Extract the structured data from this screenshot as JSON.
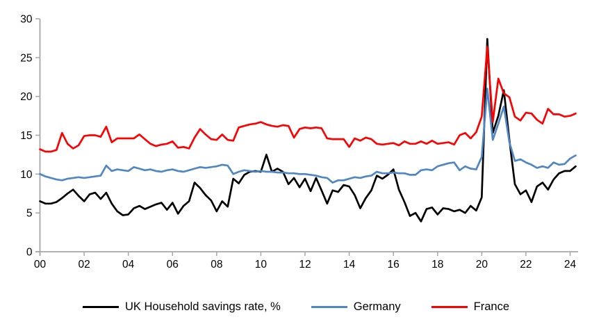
{
  "chart_data": {
    "type": "line",
    "title": "",
    "xlabel": "",
    "ylabel": "",
    "frequency": "quarterly",
    "x_start_year": 2000,
    "x_step_years": 0.25,
    "grid": false,
    "legend_position": "bottom",
    "axis_color": "#A6A6A6",
    "x_axis": {
      "tick_years": [
        0,
        2,
        4,
        6,
        8,
        10,
        12,
        14,
        16,
        18,
        20,
        22,
        24
      ],
      "tick_labels": [
        "00",
        "02",
        "04",
        "06",
        "08",
        "10",
        "12",
        "14",
        "16",
        "18",
        "20",
        "22",
        "24"
      ]
    },
    "y_axis": {
      "min": 0,
      "max": 30,
      "tick_values": [
        0,
        5,
        10,
        15,
        20,
        25,
        30
      ],
      "tick_labels": [
        "0",
        "5",
        "10",
        "15",
        "20",
        "25",
        "30"
      ]
    },
    "series": [
      {
        "name": "UK Household savings rate, %",
        "color": "#000000",
        "values": [
          6.5,
          6.2,
          6.2,
          6.4,
          6.9,
          7.5,
          8.0,
          7.2,
          6.5,
          7.4,
          7.6,
          6.8,
          7.6,
          6.2,
          5.2,
          4.7,
          4.8,
          5.6,
          5.9,
          5.5,
          5.8,
          6.1,
          6.3,
          5.4,
          6.3,
          4.9,
          5.9,
          6.5,
          8.9,
          8.2,
          7.3,
          6.6,
          5.2,
          6.5,
          5.8,
          9.4,
          8.8,
          9.9,
          10.3,
          10.4,
          10.3,
          12.5,
          10.3,
          10.7,
          10.3,
          8.7,
          9.5,
          8.3,
          9.4,
          7.8,
          9.5,
          7.9,
          6.2,
          7.9,
          7.7,
          8.6,
          8.4,
          7.3,
          5.6,
          6.9,
          7.9,
          9.8,
          9.4,
          9.9,
          10.6,
          8.0,
          6.4,
          4.6,
          5.0,
          3.9,
          5.5,
          5.7,
          4.8,
          5.6,
          5.5,
          5.2,
          5.4,
          5.0,
          5.9,
          5.3,
          7.0,
          27.4,
          15.3,
          17.5,
          20.8,
          14.4,
          8.7,
          7.4,
          7.9,
          6.4,
          8.4,
          8.9,
          8.0,
          9.3,
          10.1,
          10.4,
          10.4,
          11.0
        ]
      },
      {
        "name": "Germany",
        "color": "#4F86C6",
        "values": [
          10.0,
          9.7,
          9.5,
          9.3,
          9.2,
          9.4,
          9.5,
          9.6,
          9.5,
          9.6,
          9.7,
          9.8,
          11.1,
          10.4,
          10.6,
          10.5,
          10.4,
          10.9,
          10.7,
          10.5,
          10.6,
          10.4,
          10.3,
          10.5,
          10.6,
          10.4,
          10.3,
          10.5,
          10.7,
          10.9,
          10.8,
          10.9,
          11.0,
          11.2,
          11.1,
          10.0,
          10.3,
          10.5,
          10.4,
          10.3,
          10.4,
          10.3,
          10.3,
          10.2,
          10.2,
          10.1,
          10.1,
          10.0,
          10.0,
          9.9,
          9.8,
          9.6,
          9.5,
          8.9,
          9.2,
          9.2,
          9.4,
          9.6,
          9.5,
          9.7,
          9.8,
          10.3,
          10.1,
          10.1,
          10.2,
          10.1,
          10.1,
          9.9,
          9.9,
          10.5,
          10.6,
          10.5,
          11.0,
          11.2,
          11.4,
          11.5,
          10.5,
          11.0,
          10.7,
          10.6,
          12.2,
          21.0,
          14.4,
          16.5,
          18.7,
          14.1,
          11.7,
          11.9,
          11.5,
          11.2,
          10.8,
          11.0,
          10.8,
          11.5,
          11.2,
          11.3,
          12.0,
          12.4
        ]
      },
      {
        "name": "France",
        "color": "#FF0000",
        "values": [
          13.2,
          12.9,
          12.9,
          13.1,
          15.3,
          13.9,
          13.3,
          13.7,
          14.9,
          15.0,
          15.0,
          14.8,
          16.1,
          14.1,
          14.6,
          14.6,
          14.6,
          14.6,
          15.1,
          14.5,
          13.9,
          13.6,
          13.8,
          13.9,
          14.2,
          13.4,
          13.5,
          13.3,
          14.7,
          15.8,
          15.1,
          14.5,
          14.4,
          15.1,
          14.4,
          14.3,
          16.0,
          16.2,
          16.4,
          16.5,
          16.7,
          16.4,
          16.2,
          16.1,
          16.3,
          16.2,
          14.7,
          15.8,
          16.0,
          15.9,
          16.0,
          15.9,
          14.6,
          14.5,
          14.5,
          14.5,
          13.5,
          14.6,
          14.3,
          14.7,
          14.5,
          13.9,
          13.8,
          13.9,
          14.0,
          13.7,
          14.2,
          13.9,
          13.9,
          14.2,
          13.9,
          14.3,
          13.9,
          14.0,
          14.1,
          13.8,
          15.0,
          15.3,
          14.6,
          15.4,
          17.4,
          26.4,
          16.7,
          22.3,
          20.4,
          19.9,
          17.4,
          16.9,
          17.9,
          17.8,
          17.0,
          16.5,
          18.4,
          17.7,
          17.7,
          17.4,
          17.5,
          17.8
        ]
      }
    ]
  },
  "legend": {
    "items": [
      {
        "label": "UK Household savings rate, %",
        "color": "#000000"
      },
      {
        "label": "Germany",
        "color": "#4F86C6"
      },
      {
        "label": "France",
        "color": "#FF0000"
      }
    ]
  }
}
